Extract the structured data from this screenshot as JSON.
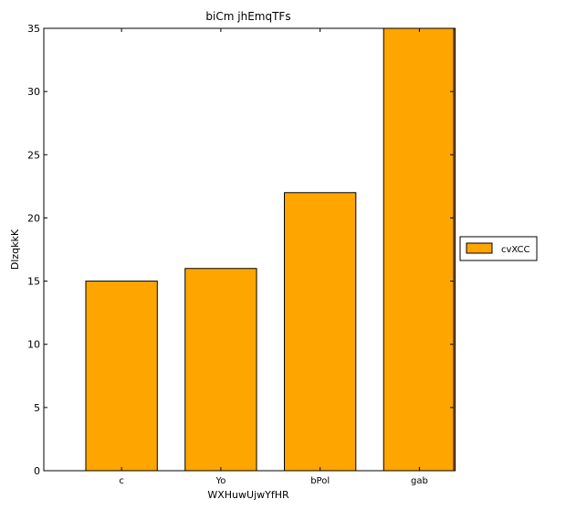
{
  "chart_data": {
    "type": "bar",
    "title": "biCm jhEmqTFs",
    "xlabel": "WXHuwUjwYfHR",
    "ylabel": "DlzqkkK",
    "categories": [
      "c",
      "Yo",
      "bPol",
      "gab"
    ],
    "series": [
      {
        "name": "cvXCC",
        "values": [
          15,
          16,
          22,
          35
        ],
        "color": "#ffa500"
      }
    ],
    "ylim": [
      0,
      35
    ],
    "yticks": [
      0,
      5,
      10,
      15,
      20,
      25,
      30,
      35
    ],
    "grid": false,
    "legend_position": "right"
  }
}
